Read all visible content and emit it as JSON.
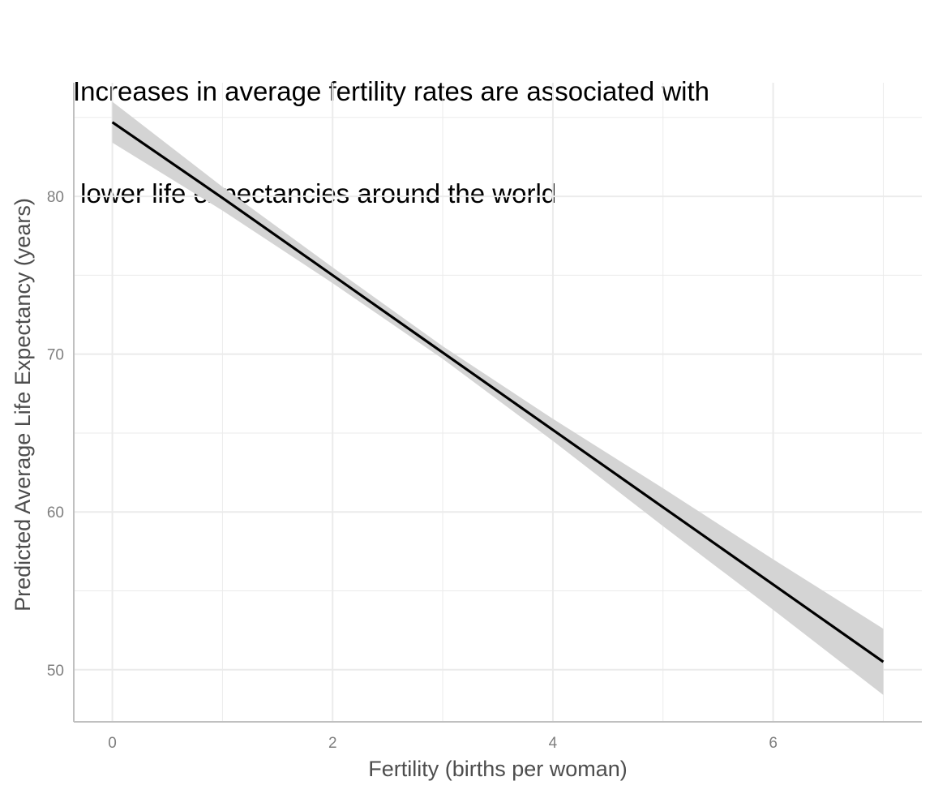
{
  "chart_data": {
    "type": "line",
    "title_lines": [
      "Increases in average fertility rates are associated with",
      " lower life expectancies around the world"
    ],
    "xlabel": "Fertility (births per woman)",
    "ylabel": "Predicted Average Life Expectancy (years)",
    "xlim": [
      -0.35,
      7.35
    ],
    "ylim": [
      46.7,
      87.2
    ],
    "x_ticks": [
      0,
      2,
      4,
      6
    ],
    "x_tick_labels": [
      "0",
      "2",
      "4",
      "6"
    ],
    "x_minor_ticks": [
      1,
      3,
      5,
      7
    ],
    "y_ticks": [
      50,
      60,
      70,
      80
    ],
    "y_tick_labels": [
      "50",
      "60",
      "70",
      "80"
    ],
    "y_minor_ticks": [
      55,
      65,
      75,
      85
    ],
    "grid": true,
    "series": [
      {
        "x": [
          0,
          1,
          2,
          3,
          4,
          5,
          6,
          7
        ],
        "y": [
          84.7,
          79.9,
          75.0,
          70.1,
          65.2,
          60.3,
          55.4,
          50.5
        ],
        "ci_lower": [
          83.4,
          79.1,
          74.5,
          69.7,
          64.5,
          59.1,
          53.8,
          48.4
        ],
        "ci_upper": [
          86.0,
          80.6,
          75.5,
          70.5,
          65.9,
          61.5,
          57.0,
          52.6
        ]
      }
    ],
    "colors": {
      "line": "#000000",
      "ribbon": "#d4d4d4",
      "grid": "#ebebeb",
      "axis": "#c0c0c0"
    }
  }
}
